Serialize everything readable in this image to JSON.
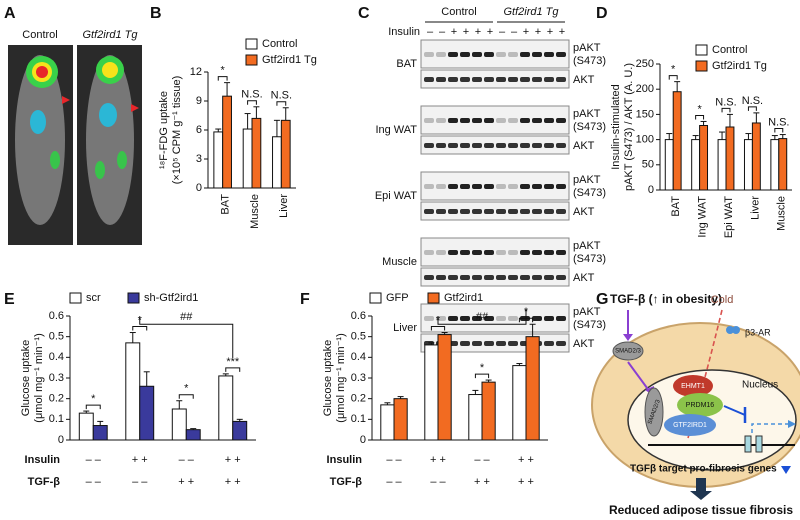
{
  "panel_labels": [
    "A",
    "B",
    "C",
    "D",
    "E",
    "F",
    "G"
  ],
  "panel_a": {
    "labels": [
      "Control",
      "Gtf2ird1 Tg"
    ]
  },
  "panel_c": {
    "groups": [
      "Control",
      "Gtf2ird1 Tg"
    ],
    "insulin_label": "Insulin",
    "insulin_signs": [
      "–",
      "–",
      "+",
      "+",
      "+",
      "+",
      "–",
      "–",
      "+",
      "+",
      "+",
      "+"
    ],
    "tissues": [
      "BAT",
      "Ing WAT",
      "Epi WAT",
      "Muscle",
      "Liver"
    ],
    "bands": [
      "pAKT",
      "(S473)",
      "AKT"
    ]
  },
  "chart_data": [
    {
      "type": "bar",
      "y_label": [
        "¹⁸F-FDG uptake",
        "(×10⁵ CPM g⁻¹ tissue)"
      ],
      "categories": [
        "BAT",
        "Muscle",
        "Liver"
      ],
      "ylim": [
        0,
        12
      ],
      "yticks": [
        0,
        3,
        6,
        9,
        12
      ],
      "series": [
        {
          "name": "Control",
          "color": "#ffffff",
          "values": [
            5.8,
            6.1,
            5.3
          ],
          "errors": [
            0.3,
            1.6,
            1.7
          ]
        },
        {
          "name": "Gtf2ird1 Tg",
          "color": "#f26b21",
          "values": [
            9.5,
            7.2,
            7.0
          ],
          "errors": [
            1.4,
            1.2,
            1.3
          ]
        }
      ],
      "annotations": [
        "*",
        "N.S.",
        "N.S."
      ]
    },
    {
      "type": "bar",
      "y_label": [
        "Insulin-stimulated",
        "pAKT (S473) / AKT  (A. U.)"
      ],
      "categories": [
        "BAT",
        "Ing WAT",
        "Epi WAT",
        "Liver",
        "Muscle"
      ],
      "ylim": [
        0,
        250
      ],
      "yticks": [
        0,
        50,
        100,
        150,
        200,
        250
      ],
      "series": [
        {
          "name": "Control",
          "color": "#ffffff",
          "values": [
            100,
            100,
            100,
            100,
            100
          ],
          "errors": [
            12,
            8,
            15,
            12,
            8
          ]
        },
        {
          "name": "Gtf2ird1 Tg",
          "color": "#f26b21",
          "values": [
            195,
            128,
            125,
            133,
            102
          ],
          "errors": [
            20,
            8,
            25,
            20,
            8
          ]
        }
      ],
      "annotations": [
        "*",
        "*",
        "N.S.",
        "N.S.",
        "N.S."
      ]
    },
    {
      "type": "bar",
      "y_label": [
        "Glucose uptake",
        "(μmol mg⁻¹ min⁻¹)"
      ],
      "categories": [
        null,
        null,
        null,
        null
      ],
      "ylim": [
        0,
        0.6
      ],
      "yticks": [
        0,
        0.1,
        0.2,
        0.3,
        0.4,
        0.5,
        0.6
      ],
      "series": [
        {
          "name": "scr",
          "color": "#ffffff",
          "values": [
            0.13,
            0.47,
            0.15,
            0.31
          ],
          "errors": [
            0.01,
            0.05,
            0.04,
            0.01
          ]
        },
        {
          "name": "sh-Gtf2ird1",
          "color": "#3a3a9c",
          "values": [
            0.07,
            0.26,
            0.05,
            0.09
          ],
          "errors": [
            0.02,
            0.07,
            0.005,
            0.01
          ]
        }
      ],
      "conditions": [
        {
          "label": "Insulin",
          "values": [
            "– –",
            "+ +",
            "– –",
            "+ +"
          ]
        },
        {
          "label": "TGF-β",
          "values": [
            "– –",
            "– –",
            "+ +",
            "+ +"
          ]
        }
      ],
      "annotations": [
        "*",
        "*",
        "*",
        "***",
        "##"
      ]
    },
    {
      "type": "bar",
      "y_label": [
        "Glucose uptake",
        "(μmol mg⁻¹ min⁻¹)"
      ],
      "categories": [
        null,
        null,
        null,
        null
      ],
      "ylim": [
        0,
        0.6
      ],
      "yticks": [
        0,
        0.1,
        0.2,
        0.3,
        0.4,
        0.5,
        0.6
      ],
      "series": [
        {
          "name": "GFP",
          "color": "#ffffff",
          "values": [
            0.17,
            0.46,
            0.22,
            0.36
          ],
          "errors": [
            0.01,
            0.01,
            0.02,
            0.01
          ]
        },
        {
          "name": "Gtf2ird1",
          "color": "#f26b21",
          "values": [
            0.2,
            0.51,
            0.28,
            0.5
          ],
          "errors": [
            0.01,
            0.01,
            0.01,
            0.06
          ]
        }
      ],
      "conditions": [
        {
          "label": "Insulin",
          "values": [
            "– –",
            "+ +",
            "– –",
            "+ +"
          ]
        },
        {
          "label": "TGF-β",
          "values": [
            "– –",
            "– –",
            "+ +",
            "+ +"
          ]
        }
      ],
      "annotations": [
        "*",
        "*",
        "*",
        "##"
      ]
    }
  ],
  "panel_g": {
    "signal": "TGF-β (↑ in obesity)",
    "cold": "Cold",
    "receptor": "β3-AR",
    "smad_cyto": "SMAD2/3",
    "nucleus": "Nucleus",
    "ehmt1": "EHMT1",
    "prdm16": "PRDM16",
    "smad_nuc": "SMAD2/3",
    "gtf": "GTF2IRD1",
    "genes": "TGFβ target pro-fibrosis genes",
    "outcome": "Reduced adipose tissue fibrosis"
  }
}
